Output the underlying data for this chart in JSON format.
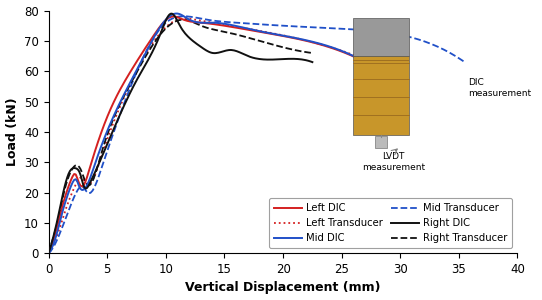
{
  "xlabel": "Vertical Displacement (mm)",
  "ylabel": "Load (kN)",
  "xlim": [
    0,
    40
  ],
  "ylim": [
    0,
    80
  ],
  "xticks": [
    0,
    5,
    10,
    15,
    20,
    25,
    30,
    35,
    40
  ],
  "yticks": [
    0,
    10,
    20,
    30,
    40,
    50,
    60,
    70,
    80
  ],
  "colors": {
    "left": "#d42020",
    "mid": "#2050c8",
    "right": "#111111"
  },
  "dic_label": "DIC\nmeasurement",
  "lvdt_label": "LVDT\nmeasurement"
}
